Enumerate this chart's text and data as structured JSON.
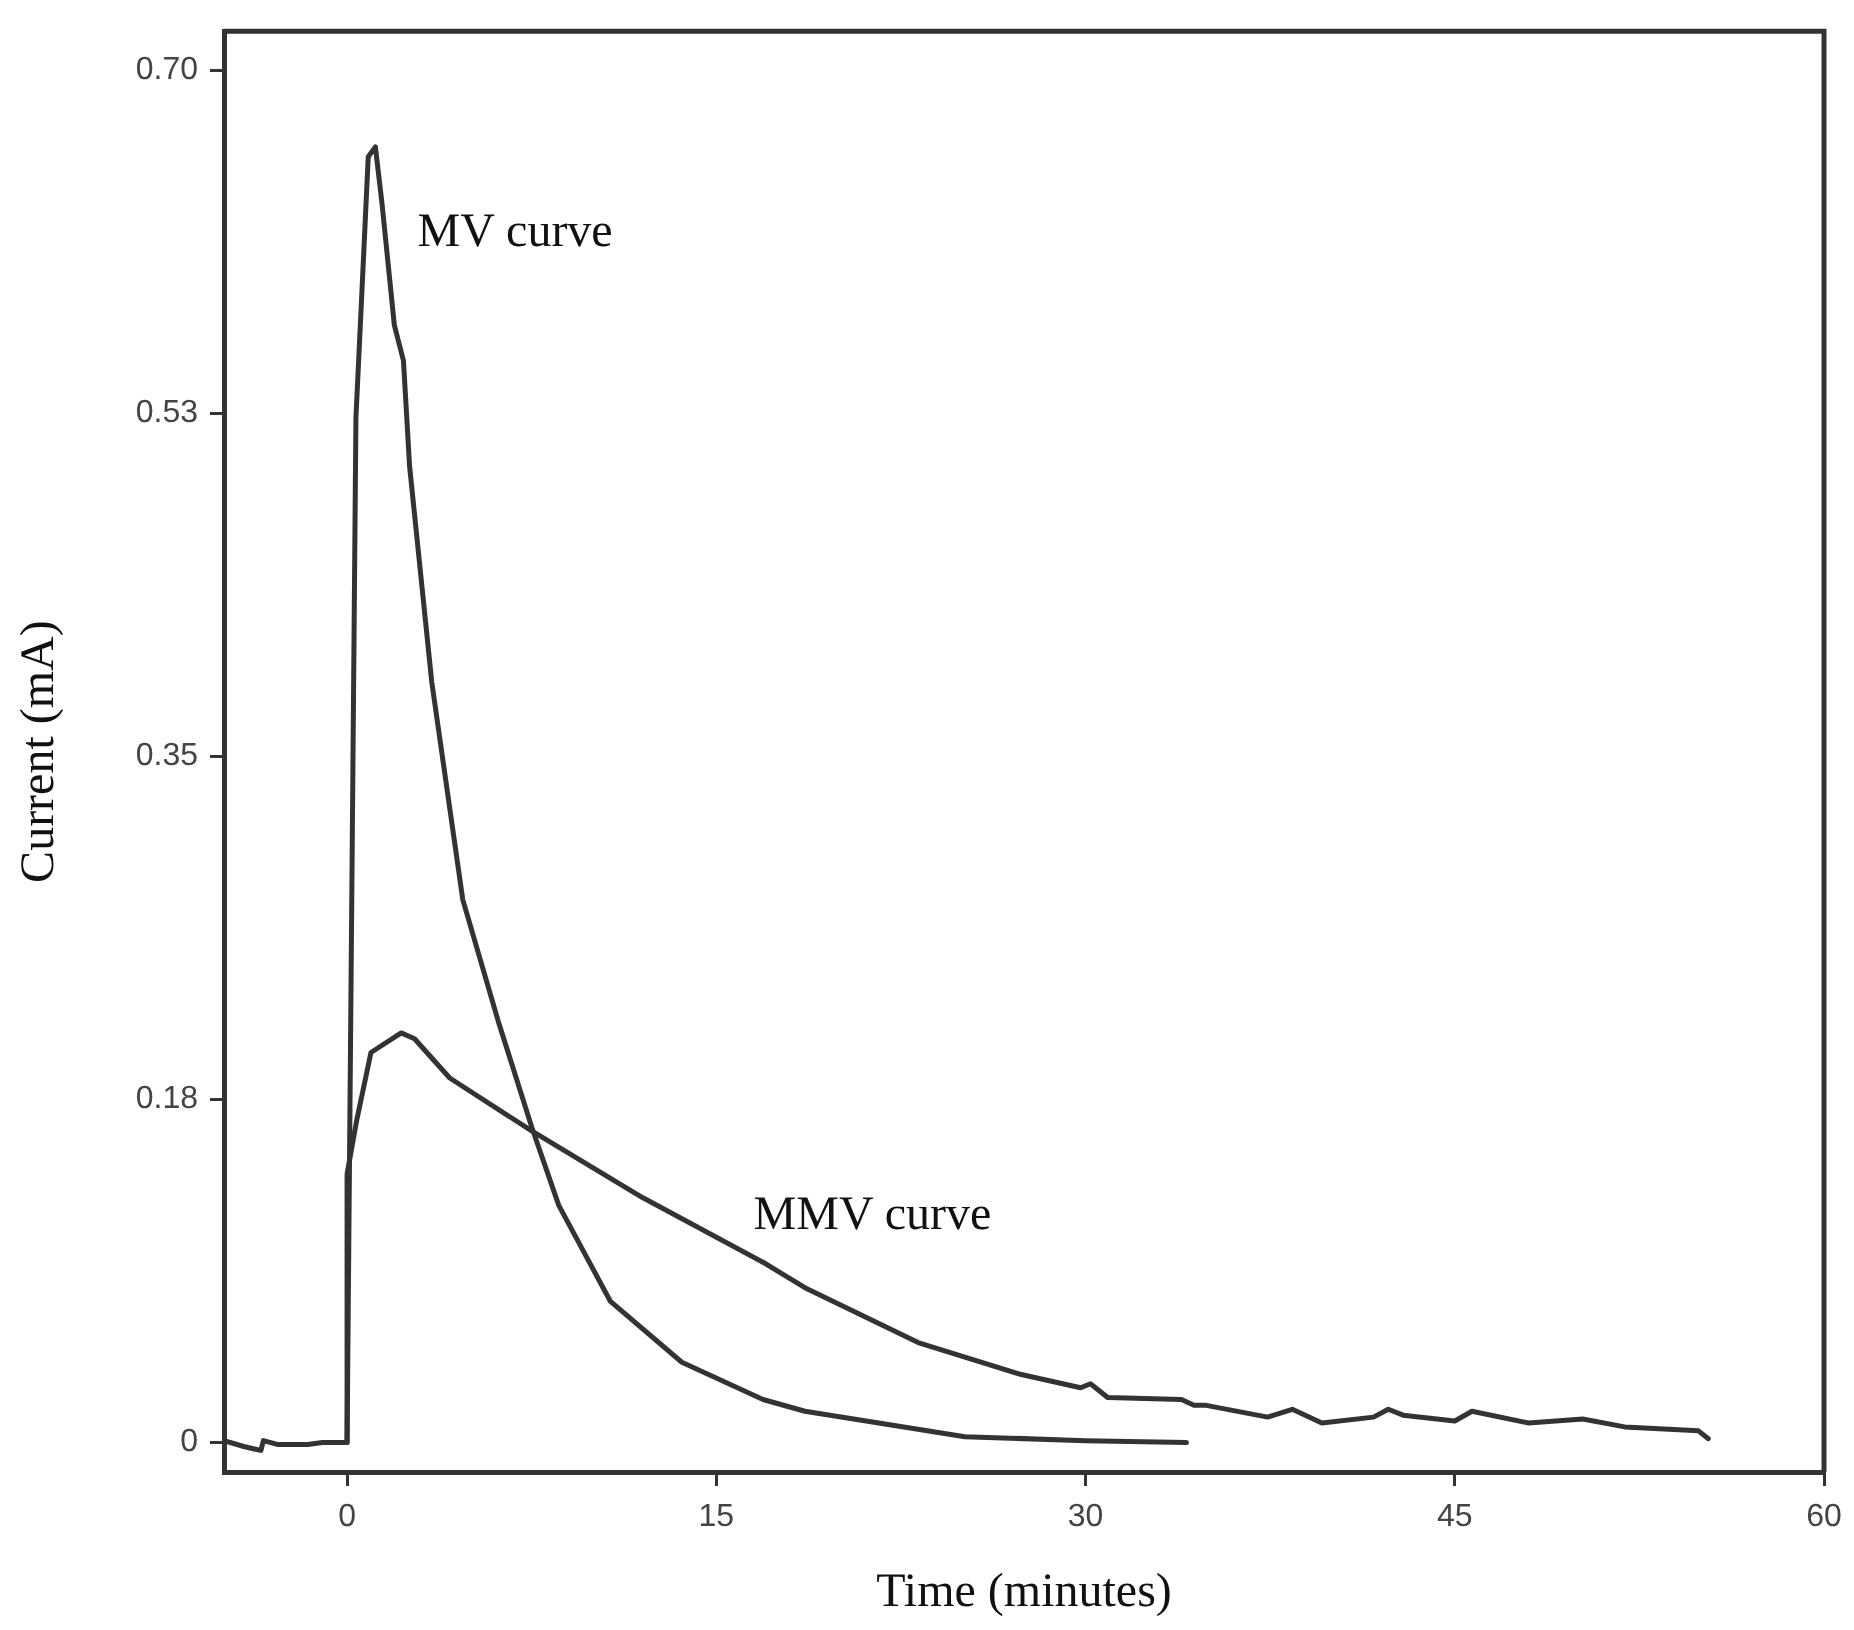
{
  "chart_data": {
    "type": "line",
    "xlabel": "Time (minutes)",
    "ylabel": "Current (mA)",
    "xlim": [
      -5,
      60
    ],
    "xticks": [
      0,
      15,
      30,
      45,
      60
    ],
    "ylim": [
      -0.015,
      0.72
    ],
    "yticks": [
      {
        "value": 0,
        "label": "0"
      },
      {
        "value": 0.175,
        "label": "0.18"
      },
      {
        "value": 0.35,
        "label": "0.35"
      },
      {
        "value": 0.525,
        "label": "0.53"
      },
      {
        "value": 0.7,
        "label": "0.70"
      }
    ],
    "grid": false,
    "legend": false,
    "marker": "none",
    "line_style": "solid",
    "series": [
      {
        "color": "#333333",
        "x": [
          -5,
          -4.2,
          -3.5,
          -3.4,
          -2.8,
          -1.6,
          -1,
          -0.2,
          0,
          0.36,
          0.61,
          0.86,
          1.15,
          1.42,
          1.92,
          2.29,
          2.54,
          3.44,
          4.7,
          6.14,
          7.5,
          8.6,
          10.7,
          13.6,
          16.9,
          18.6,
          25.1,
          30,
          34.1
        ],
        "values": [
          0.001,
          -0.002,
          -0.004,
          0.001,
          -0.001,
          -0.001,
          0,
          0,
          0,
          0.523,
          0.589,
          0.656,
          0.661,
          0.632,
          0.57,
          0.552,
          0.498,
          0.388,
          0.277,
          0.215,
          0.161,
          0.121,
          0.072,
          0.041,
          0.022,
          0.016,
          0.003,
          0.001,
          0
        ]
      },
      {
        "color": "#333333",
        "x": [
          0,
          0,
          0.4,
          0.97,
          2.2,
          2.74,
          4.17,
          7.5,
          12,
          16.9,
          18.6,
          23.2,
          27.3,
          29.8,
          30.2,
          30.9,
          33.9,
          34.4,
          34.9,
          37.4,
          38.4,
          39.6,
          41.7,
          42.3,
          42.9,
          45,
          45.7,
          48,
          50.2,
          51.9,
          54.9,
          55.3
        ],
        "values": [
          0,
          0.137,
          0.165,
          0.199,
          0.209,
          0.206,
          0.186,
          0.159,
          0.125,
          0.092,
          0.079,
          0.051,
          0.035,
          0.028,
          0.03,
          0.023,
          0.022,
          0.019,
          0.019,
          0.013,
          0.017,
          0.01,
          0.013,
          0.017,
          0.014,
          0.011,
          0.016,
          0.01,
          0.012,
          0.008,
          0.006,
          0.002
        ]
      }
    ],
    "annotations": [
      "MV curve",
      "MMV curve"
    ]
  }
}
